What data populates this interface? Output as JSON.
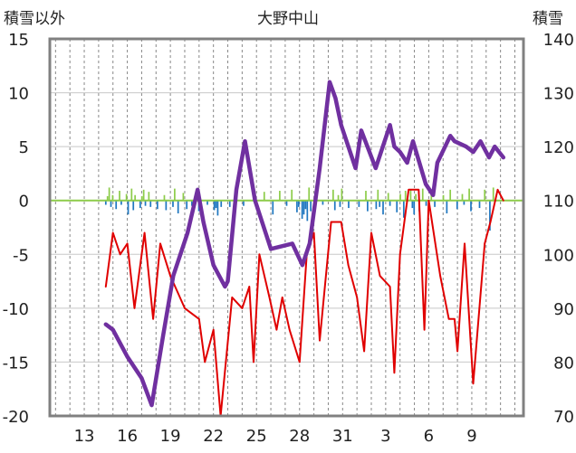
{
  "chart_data": {
    "type": "line",
    "title": "大野中山",
    "ylabel_left": "積雪以外",
    "ylabel_right": "積雪",
    "xtick_labels": [
      "13",
      "16",
      "19",
      "22",
      "25",
      "28",
      "31",
      "3",
      "6",
      "9"
    ],
    "ylim_left": [
      -20,
      15
    ],
    "ylim_right": [
      70,
      140
    ],
    "yticks_left": [
      15,
      10,
      5,
      0,
      -5,
      -10,
      -15,
      -20
    ],
    "yticks_right": [
      140,
      130,
      120,
      110,
      100,
      90,
      80,
      70
    ],
    "grid": true,
    "colors": {
      "snow_depth": "#7030a0",
      "temperature": "#e00000",
      "precip_positive": "#8dcc4a",
      "precip_negative": "#1f77c0",
      "zero_line": "#8dcc4a",
      "frame": "#808080"
    },
    "series": [
      {
        "axis": "right",
        "color": "#7030a0",
        "points": [
          [
            14.5,
            87
          ],
          [
            15,
            86
          ],
          [
            16,
            81
          ],
          [
            17,
            77
          ],
          [
            17.7,
            72
          ],
          [
            18.5,
            85
          ],
          [
            19.2,
            96
          ],
          [
            20.2,
            104
          ],
          [
            20.9,
            112
          ],
          [
            21.3,
            106
          ],
          [
            22,
            98
          ],
          [
            22.8,
            94
          ],
          [
            23,
            95
          ],
          [
            23.6,
            112
          ],
          [
            24.2,
            121
          ],
          [
            24.9,
            110
          ],
          [
            26,
            101
          ],
          [
            27.5,
            102
          ],
          [
            28.2,
            98
          ],
          [
            28.7,
            102
          ],
          [
            29.4,
            116
          ],
          [
            30.1,
            132
          ],
          [
            30.5,
            129
          ],
          [
            30.9,
            124
          ],
          [
            31.9,
            116
          ],
          [
            32.3,
            123
          ],
          [
            33.3,
            116
          ],
          [
            34.3,
            124
          ],
          [
            34.6,
            120
          ],
          [
            35,
            119
          ],
          [
            35.5,
            117
          ],
          [
            35.9,
            121
          ],
          [
            36.8,
            113
          ],
          [
            37.3,
            111
          ],
          [
            37.6,
            117
          ],
          [
            38.5,
            122
          ],
          [
            38.8,
            121
          ],
          [
            39.6,
            120
          ],
          [
            40.1,
            119
          ],
          [
            40.6,
            121
          ],
          [
            41.2,
            118
          ],
          [
            41.6,
            120
          ],
          [
            42.2,
            118
          ]
        ]
      },
      {
        "axis": "left",
        "color": "#e00000",
        "points": [
          [
            14.5,
            -8
          ],
          [
            15,
            -3
          ],
          [
            15.5,
            -5
          ],
          [
            16,
            -4
          ],
          [
            16.5,
            -10
          ],
          [
            17.2,
            -3
          ],
          [
            17.8,
            -11
          ],
          [
            18.3,
            -4
          ],
          [
            19,
            -7
          ],
          [
            20,
            -10
          ],
          [
            21,
            -11
          ],
          [
            21.4,
            -15
          ],
          [
            22,
            -12
          ],
          [
            22.5,
            -20
          ],
          [
            23.3,
            -9
          ],
          [
            24,
            -10
          ],
          [
            24.5,
            -8
          ],
          [
            24.8,
            -15
          ],
          [
            25.2,
            -5
          ],
          [
            25.9,
            -9
          ],
          [
            26.4,
            -12
          ],
          [
            26.8,
            -9
          ],
          [
            27.3,
            -12
          ],
          [
            28,
            -15
          ],
          [
            28.5,
            -5
          ],
          [
            29,
            -3
          ],
          [
            29.4,
            -13
          ],
          [
            30.2,
            -2
          ],
          [
            30.9,
            -2
          ],
          [
            31.4,
            -6
          ],
          [
            32,
            -9
          ],
          [
            32.5,
            -14
          ],
          [
            33,
            -3
          ],
          [
            33.6,
            -7
          ],
          [
            34.3,
            -8
          ],
          [
            34.6,
            -16
          ],
          [
            35,
            -5
          ],
          [
            35.6,
            1
          ],
          [
            36.3,
            1
          ],
          [
            36.7,
            -12
          ],
          [
            37,
            0
          ],
          [
            37.8,
            -7
          ],
          [
            38.4,
            -11
          ],
          [
            38.8,
            -11
          ],
          [
            39,
            -14
          ],
          [
            39.5,
            -4
          ],
          [
            40.1,
            -17
          ],
          [
            40.9,
            -4
          ],
          [
            41.3,
            -2
          ],
          [
            41.8,
            1
          ],
          [
            42.2,
            0
          ]
        ]
      }
    ],
    "bars": {
      "start": 14.5,
      "end": 42.2,
      "step": 0.12,
      "values": [
        -0.4,
        0.4,
        1.2,
        -0.6,
        0.5,
        0.0,
        -0.8,
        0.0,
        0.9,
        -0.4,
        0.0,
        0.0,
        0.6,
        -1.3,
        0.0,
        1.1,
        -0.9,
        0.5,
        0.0,
        0.0,
        -0.7,
        0.4,
        1.0,
        -0.5,
        0.0,
        0.8,
        -0.6,
        0.0,
        0.0,
        0.0,
        -0.8,
        0.0,
        0.0,
        0.0,
        0.5,
        -0.9,
        0.0,
        0.0,
        0.0,
        -0.6,
        1.1,
        0.0,
        -1.2,
        0.0,
        0.0,
        0.7,
        0.0,
        -0.8,
        0.0,
        0.0,
        -0.5,
        0.0,
        0.0,
        0.0,
        -1.0,
        -0.6,
        0.0,
        0.0,
        0.0,
        -0.4,
        0.0,
        0.0,
        0.0,
        -0.9,
        -0.7,
        -1.4,
        0.0,
        -0.6,
        0.0,
        0.0,
        0.0,
        0.0,
        -0.6,
        0.0,
        0.0,
        -0.7,
        0.0,
        0.0,
        0.0,
        0.0,
        -0.5,
        0.0,
        0.0,
        0.0,
        0.0,
        0.0,
        0.0,
        0.0,
        0.0,
        0.0,
        0.0,
        0.0,
        0.8,
        0.0,
        0.0,
        0.0,
        0.0,
        -1.3,
        0.0,
        0.0,
        0.0,
        0.9,
        0.0,
        0.0,
        0.0,
        -0.5,
        0.0,
        0.0,
        1.0,
        0.0,
        0.0,
        -1.1,
        -0.6,
        0.0,
        -1.7,
        -1.3,
        -0.8,
        -1.9,
        1.2,
        -1.0,
        0.0,
        -0.7,
        0.0,
        0.0,
        0.0,
        0.0,
        -0.4,
        0.0,
        0.0,
        0.0,
        0.0,
        0.0,
        1.0,
        -0.9,
        0.0,
        0.5,
        -0.6,
        1.1,
        0.0,
        0.0,
        0.0,
        -0.7,
        0.0,
        0.0,
        0.0,
        0.0,
        0.0,
        -0.6,
        0.0,
        0.0,
        0.0,
        0.9,
        -1.0,
        0.0,
        0.0,
        0.0,
        0.0,
        -0.8,
        1.0,
        -0.6,
        0.0,
        -1.3,
        0.0,
        0.0,
        0.7,
        -0.5,
        0.0,
        0.0,
        0.0,
        -1.1,
        0.0,
        0.6,
        0.0,
        -1.6,
        0.9,
        0.0,
        0.0,
        1.0,
        -0.7,
        -1.3,
        0.6,
        0.0,
        -1.0,
        0.0,
        1.1,
        0.0,
        -0.5,
        0.0,
        0.0,
        0.9,
        0.0,
        -0.6,
        0.0,
        0.0,
        0.0,
        0.0,
        0.5,
        0.0,
        -1.2,
        0.0,
        1.0,
        0.0,
        0.0,
        0.0,
        -0.8,
        0.0,
        0.0,
        0.6,
        -0.4,
        0.0,
        0.0,
        1.1,
        -1.0,
        0.0,
        0.0,
        0.0,
        0.0,
        -0.7,
        0.0,
        0.0,
        1.0,
        0.0,
        0.0,
        -2.8,
        0.0,
        1.2,
        0.0
      ]
    }
  }
}
